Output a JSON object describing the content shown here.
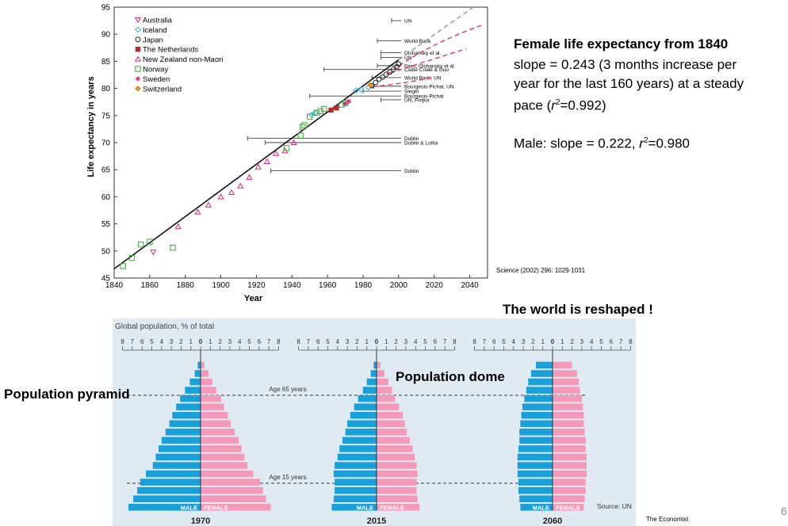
{
  "life_expectancy_chart": {
    "chart_data": {
      "type": "scatter",
      "xlabel": "Year",
      "ylabel": "Life expectancy in years",
      "xlim": [
        1840,
        2050
      ],
      "ylim": [
        45,
        95
      ],
      "xticks": [
        "1840",
        "1860",
        "1880",
        "1900",
        "1920",
        "1940",
        "1960",
        "1980",
        "2000",
        "2020",
        "2040"
      ],
      "yticks": [
        "45",
        "50",
        "55",
        "60",
        "65",
        "70",
        "75",
        "80",
        "85",
        "90",
        "95"
      ],
      "legend_position": "top-left",
      "series": [
        {
          "name": "Australia",
          "marker": "triangle-down",
          "color": "#d6287e",
          "points": [
            [
              1862,
              49.8
            ]
          ]
        },
        {
          "name": "Iceland",
          "marker": "diamond",
          "color": "#27a9e1",
          "points": [
            [
              1951,
              75.1
            ],
            [
              1953,
              75.5
            ],
            [
              1976,
              79.6
            ],
            [
              1979,
              79.8
            ],
            [
              1983,
              80.2
            ]
          ]
        },
        {
          "name": "Japan",
          "marker": "circle",
          "color": "#222222",
          "points": [
            [
              1985,
              80.5
            ],
            [
              1987,
              81.1
            ],
            [
              1989,
              81.7
            ],
            [
              1991,
              82.1
            ],
            [
              1993,
              82.6
            ],
            [
              1995,
              83.0
            ],
            [
              1997,
              83.5
            ],
            [
              1999,
              84.0
            ],
            [
              2000,
              84.5
            ]
          ]
        },
        {
          "name": "The Netherlands",
          "marker": "square-filled",
          "color": "#b32a2a",
          "points": [
            [
              1962,
              76.0
            ],
            [
              1965,
              76.4
            ]
          ]
        },
        {
          "name": "New Zealand non-Maori",
          "marker": "triangle",
          "color": "#d6287e",
          "points": [
            [
              1876,
              54.5
            ],
            [
              1887,
              57.2
            ],
            [
              1893,
              58.5
            ],
            [
              1900,
              60.0
            ],
            [
              1906,
              60.8
            ],
            [
              1911,
              62.0
            ],
            [
              1916,
              63.6
            ],
            [
              1921,
              65.5
            ],
            [
              1926,
              66.5
            ],
            [
              1931,
              68.0
            ],
            [
              1936,
              68.5
            ],
            [
              1941,
              70.0
            ]
          ]
        },
        {
          "name": "Norway",
          "marker": "square",
          "color": "#3aa83a",
          "points": [
            [
              1845,
              47.2
            ],
            [
              1850,
              48.7
            ],
            [
              1855,
              51.2
            ],
            [
              1860,
              51.7
            ],
            [
              1873,
              50.6
            ],
            [
              1937,
              69.0
            ],
            [
              1945,
              71.3
            ],
            [
              1946,
              72.9
            ],
            [
              1947,
              73.2
            ],
            [
              1950,
              74.8
            ],
            [
              1954,
              75.5
            ],
            [
              1956,
              75.8
            ],
            [
              1958,
              76.2
            ],
            [
              1968,
              77.0
            ],
            [
              1970,
              77.3
            ]
          ]
        },
        {
          "name": "Sweden",
          "marker": "star",
          "color": "#d6287e",
          "points": [
            [
              1970,
              77.2
            ],
            [
              1972,
              77.6
            ]
          ]
        },
        {
          "name": "Switzerland",
          "marker": "diamond-filled",
          "color": "#e8a021",
          "points": [
            [
              1984,
              80.6
            ]
          ]
        }
      ],
      "trend_line": {
        "slope": 0.243,
        "x": [
          1840,
          2000
        ],
        "y": [
          46.7,
          85.3
        ]
      },
      "projections": [
        {
          "label": "UN",
          "y": 92.5,
          "x0": 1996
        },
        {
          "label": "World Bank",
          "y": 88.8,
          "x0": 1988
        },
        {
          "label": "Olshansky et al.",
          "y": 86.6,
          "x0": 1990
        },
        {
          "label": "UN",
          "y": 85.7,
          "x0": 1990
        },
        {
          "label": "Fries, Olshansky et al.",
          "y": 84.2,
          "x0": 1988
        },
        {
          "label": "Coale   Coale & Guo",
          "y": 83.5,
          "x0": 1958
        },
        {
          "label": "World Bank, UN",
          "y": 82.0,
          "x0": 1985
        },
        {
          "label": "Bourgeois-Pichat, UN",
          "y": 80.4,
          "x0": 1986
        },
        {
          "label": "Siegel",
          "y": 79.5,
          "x0": 1980
        },
        {
          "label": "Bourgeois-Pichat",
          "y": 78.6,
          "x0": 1950
        },
        {
          "label": "UN, Frejka",
          "y": 77.9,
          "x0": 1990
        },
        {
          "label": "Dublin",
          "y": 70.8,
          "x0": 1915
        },
        {
          "label": "Dublin & Lotka",
          "y": 70.0,
          "x0": 1925
        },
        {
          "label": "Dublin",
          "y": 64.8,
          "x0": 1928
        }
      ]
    }
  },
  "side_panel": {
    "title": "Female life expectancy from 1840",
    "line1": "slope = 0.243 (3 months increase per",
    "line2": "year for the last 160 years) at a steady",
    "line3_pre": "pace (",
    "line3_r": "r",
    "line3_sup": "2",
    "line3_post": "=0.992)",
    "male_pre": "Male: slope = 0.222, ",
    "male_r": "r",
    "male_sup": "2",
    "male_post": "=0.980"
  },
  "citation": "Science (2002) 296: 1029-1031",
  "reshaped": "The world is reshaped !",
  "pyramid_label": "Population pyramid",
  "dome_label": "Population dome",
  "economist": "The Economist",
  "page_number": "6",
  "pyramid_chart": {
    "chart_data": {
      "type": "bar",
      "title": "Global population, % of total",
      "scale_ticks": [
        "8",
        "7",
        "6",
        "5",
        "4",
        "3",
        "2",
        "1",
        "0",
        "1",
        "2",
        "3",
        "4",
        "5",
        "6",
        "7",
        "8"
      ],
      "age_lines": [
        "Age 65 years",
        "Age 15 years"
      ],
      "male_label": "MALE",
      "female_label": "FEMALE",
      "source": "Source: UN",
      "colors": {
        "male": "#1aa0d8",
        "female": "#f49ab8"
      },
      "panels": [
        {
          "year": "1970",
          "male": [
            7.4,
            6.9,
            6.5,
            6.2,
            5.6,
            4.9,
            4.6,
            4.3,
            4.0,
            3.6,
            3.2,
            2.9,
            2.5,
            2.1,
            1.6,
            1.1,
            0.6,
            0.3
          ],
          "female": [
            7.2,
            6.7,
            6.4,
            6.1,
            5.4,
            4.8,
            4.5,
            4.2,
            3.9,
            3.5,
            3.1,
            2.8,
            2.4,
            2.1,
            1.6,
            1.2,
            0.8,
            0.4
          ]
        },
        {
          "year": "2015",
          "male": [
            4.6,
            4.4,
            4.3,
            4.3,
            4.4,
            4.3,
            4.0,
            3.8,
            3.5,
            3.2,
            3.0,
            2.7,
            2.3,
            1.9,
            1.4,
            1.0,
            0.6,
            0.3
          ],
          "female": [
            4.4,
            4.2,
            4.1,
            4.1,
            4.2,
            4.1,
            3.9,
            3.7,
            3.4,
            3.1,
            2.9,
            2.7,
            2.3,
            1.9,
            1.6,
            1.2,
            0.8,
            0.4
          ]
        },
        {
          "year": "2060",
          "male": [
            3.3,
            3.4,
            3.5,
            3.5,
            3.6,
            3.6,
            3.6,
            3.5,
            3.4,
            3.4,
            3.3,
            3.2,
            3.1,
            2.9,
            2.7,
            2.5,
            2.2,
            1.7
          ],
          "female": [
            3.2,
            3.3,
            3.4,
            3.4,
            3.5,
            3.5,
            3.5,
            3.4,
            3.4,
            3.3,
            3.2,
            3.2,
            3.1,
            3.0,
            2.8,
            2.7,
            2.5,
            2.0
          ]
        }
      ]
    }
  }
}
